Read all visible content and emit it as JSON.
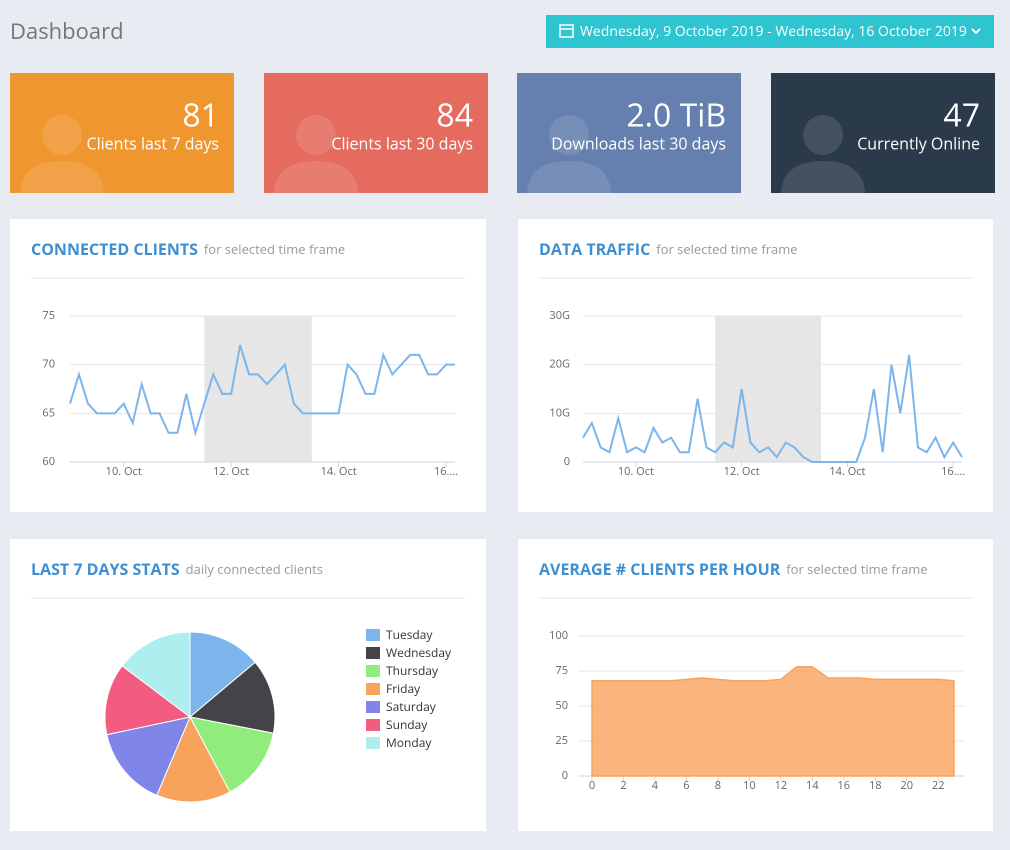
{
  "header": {
    "title": "Dashboard",
    "date_range": "Wednesday, 9 October 2019 - Wednesday, 16 October 2019"
  },
  "stats": [
    {
      "value": 81,
      "label": "Clients last 7 days",
      "color": "#f0962f"
    },
    {
      "value": 84,
      "label": "Clients last 30 days",
      "color": "#e46b5e"
    },
    {
      "value": "2.0 TiB",
      "label": "Downloads last 30 days",
      "color": "#6580ae"
    },
    {
      "value": 47,
      "label": "Currently Online",
      "color": "#2b3a4a"
    }
  ],
  "panels": [
    {
      "title": "CONNECTED CLIENTS",
      "subtitle": "for selected time frame",
      "chart": {
        "type": "line",
        "color": "#7cb5ec",
        "values": [
          66,
          69,
          66,
          65,
          65,
          65,
          66,
          64,
          68,
          65,
          65,
          63,
          63,
          67,
          63,
          66,
          69,
          67,
          67,
          72,
          69,
          69,
          68,
          69,
          70,
          66,
          65,
          65,
          65,
          65,
          65,
          70,
          69,
          67,
          67,
          71,
          69,
          70,
          71,
          71,
          69,
          69,
          70,
          70
        ],
        "xlim": [
          0,
          43
        ],
        "xticks": [
          {
            "value": 6,
            "label": "10. Oct"
          },
          {
            "value": 18,
            "label": "12. Oct"
          },
          {
            "value": 30,
            "label": "14. Oct"
          },
          {
            "value": 42,
            "label": "16...."
          }
        ],
        "ylim": [
          60,
          75
        ],
        "yticks": [
          60,
          65,
          70,
          75
        ],
        "bands": [
          {
            "from": 15,
            "to": 27
          }
        ],
        "grid": true
      }
    },
    {
      "title": "DATA TRAFFIC",
      "subtitle": "for selected time frame",
      "chart": {
        "type": "line",
        "color": "#7cb5ec",
        "values": [
          5,
          8,
          3,
          2,
          9,
          2,
          3,
          2,
          7,
          4,
          5,
          2,
          2,
          13,
          3,
          2,
          4,
          3,
          15,
          4,
          2,
          3,
          1,
          4,
          3,
          1,
          0,
          0,
          0,
          0,
          0,
          0,
          5,
          15,
          2,
          20,
          10,
          22,
          3,
          2,
          5,
          1,
          4,
          1
        ],
        "xlim": [
          0,
          43
        ],
        "xticks": [
          {
            "value": 6,
            "label": "10. Oct"
          },
          {
            "value": 18,
            "label": "12. Oct"
          },
          {
            "value": 30,
            "label": "14. Oct"
          },
          {
            "value": 42,
            "label": "16...."
          }
        ],
        "ylim": [
          0,
          30
        ],
        "yticks": [
          0,
          {
            "value": 10,
            "label": "10G"
          },
          {
            "value": 20,
            "label": "20G"
          },
          {
            "value": 30,
            "label": "30G"
          }
        ],
        "bands": [
          {
            "from": 15,
            "to": 27
          }
        ],
        "grid": true
      }
    },
    {
      "title": "LAST 7 DAYS STATS",
      "subtitle": "daily connected clients",
      "chart": {
        "type": "pie",
        "categories": [
          "Tuesday",
          "Wednesday",
          "Thursday",
          "Friday",
          "Saturday",
          "Sunday",
          "Monday"
        ],
        "values": [
          50,
          51,
          51,
          51,
          55,
          49,
          53
        ],
        "colors": [
          "#7cb5ec",
          "#434348",
          "#90ed7d",
          "#f7a35c",
          "#8085e9",
          "#f15c80",
          "#adeeee"
        ]
      }
    },
    {
      "title": "AVERAGE # CLIENTS PER HOUR",
      "subtitle": "for selected time frame",
      "chart": {
        "type": "area",
        "color": "#f7a35c",
        "values": [
          68,
          68,
          68,
          68,
          68,
          68,
          69,
          70,
          69,
          68,
          68,
          68,
          69,
          78,
          78,
          70,
          70,
          70,
          69,
          69,
          69,
          69,
          69,
          68
        ],
        "xlim": [
          0,
          23
        ],
        "xticks": [
          0,
          2,
          4,
          6,
          8,
          10,
          12,
          14,
          16,
          18,
          20,
          22
        ],
        "ylim": [
          0,
          100
        ],
        "yticks": [
          0,
          25,
          50,
          75,
          100
        ],
        "grid": true
      }
    }
  ]
}
